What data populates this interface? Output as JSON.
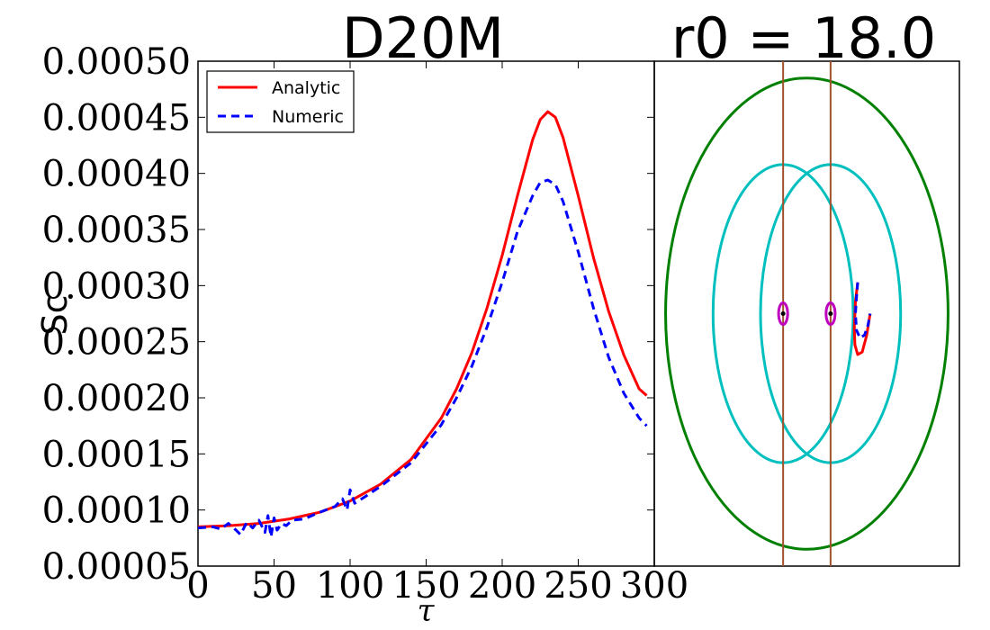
{
  "chart_data": [
    {
      "type": "line",
      "title": "D20M",
      "xlabel": "τ",
      "ylabel": "Sc",
      "xlim": [
        0,
        300
      ],
      "ylim": [
        5e-05,
        0.0005
      ],
      "xticks": [
        0,
        50,
        100,
        150,
        200,
        250,
        300
      ],
      "xtick_labels": [
        "0",
        "50",
        "100",
        "150",
        "200",
        "250",
        "300"
      ],
      "yticks": [
        5e-05,
        0.0001,
        0.00015,
        0.0002,
        0.00025,
        0.0003,
        0.00035,
        0.0004,
        0.00045,
        0.0005
      ],
      "ytick_labels": [
        "0.00005",
        "0.00010",
        "0.00015",
        "0.00020",
        "0.00025",
        "0.00030",
        "0.00035",
        "0.00040",
        "0.00045",
        "0.00050"
      ],
      "legend_position": "top-left",
      "series": [
        {
          "name": "Analytic",
          "color": "#ff0000",
          "style": "solid",
          "x": [
            0,
            20,
            40,
            60,
            80,
            100,
            120,
            140,
            160,
            170,
            180,
            190,
            200,
            210,
            220,
            225,
            230,
            235,
            240,
            250,
            260,
            270,
            280,
            290,
            295
          ],
          "y": [
            8.5e-05,
            8.6e-05,
            8.8e-05,
            9.2e-05,
            9.8e-05,
            0.000108,
            0.000123,
            0.000145,
            0.000182,
            0.000208,
            0.00024,
            0.00028,
            0.000327,
            0.00038,
            0.00043,
            0.000448,
            0.000455,
            0.00045,
            0.000432,
            0.00038,
            0.000325,
            0.000277,
            0.000238,
            0.000208,
            0.000202
          ]
        },
        {
          "name": "Numeric",
          "color": "#0000ff",
          "style": "dashed",
          "x": [
            0,
            10,
            15,
            20,
            25,
            28,
            32,
            36,
            40,
            44,
            46,
            48,
            50,
            52,
            55,
            58,
            62,
            70,
            80,
            90,
            95,
            98,
            100,
            103,
            110,
            120,
            140,
            160,
            170,
            180,
            190,
            200,
            210,
            220,
            225,
            230,
            235,
            240,
            250,
            260,
            270,
            280,
            290,
            295
          ],
          "y": [
            8.4e-05,
            8.5e-05,
            8.3e-05,
            8.8e-05,
            8.2e-05,
            7.8e-05,
            8.9e-05,
            8.4e-05,
            9.1e-05,
            8e-05,
            9.5e-05,
            7.6e-05,
            9.3e-05,
            8.2e-05,
            8.8e-05,
            8.6e-05,
            9.1e-05,
            9.2e-05,
            9.8e-05,
            0.000103,
            0.00011,
            0.0001,
            0.000118,
            0.000106,
            0.000112,
            0.000121,
            0.000142,
            0.000176,
            0.0002,
            0.000228,
            0.000263,
            0.000303,
            0.000348,
            0.00038,
            0.000392,
            0.000394,
            0.00039,
            0.000375,
            0.00033,
            0.00028,
            0.000236,
            0.000204,
            0.000182,
            0.000175
          ]
        }
      ]
    },
    {
      "type": "scatter",
      "title": "r0 = 18.0",
      "xlim": [
        -1.35,
        1.35
      ],
      "ylim": [
        -1.05,
        1.05
      ],
      "axes": "off",
      "shapes": [
        {
          "name": "outer-orbit",
          "kind": "ellipse",
          "color": "#008000",
          "cx": 0.0,
          "cy": 0.0,
          "rx": 1.25,
          "ry": 0.98
        },
        {
          "name": "left-orbit",
          "kind": "ellipse",
          "color": "#00bfbf",
          "cx": -0.21,
          "cy": 0.0,
          "rx": 0.62,
          "ry": 0.62
        },
        {
          "name": "right-orbit",
          "kind": "ellipse",
          "color": "#00bfbf",
          "cx": 0.21,
          "cy": 0.0,
          "rx": 0.62,
          "ry": 0.62
        },
        {
          "name": "left-vertical",
          "kind": "vline",
          "color": "#a0522d",
          "x": -0.21
        },
        {
          "name": "right-vertical",
          "kind": "vline",
          "color": "#a0522d",
          "x": 0.21
        },
        {
          "name": "left-body",
          "kind": "ellipse",
          "color": "#bf00bf",
          "cx": -0.21,
          "cy": 0.0,
          "rx": 0.04,
          "ry": 0.045
        },
        {
          "name": "right-body",
          "kind": "ellipse",
          "color": "#bf00bf",
          "cx": 0.21,
          "cy": 0.0,
          "rx": 0.04,
          "ry": 0.045
        }
      ],
      "series": [
        {
          "name": "Analytic",
          "color": "#ff0000",
          "style": "solid",
          "x": [
            0.45,
            0.43,
            0.42,
            0.425,
            0.45,
            0.49,
            0.53,
            0.56
          ],
          "y": [
            0.13,
            0.05,
            -0.06,
            -0.13,
            -0.17,
            -0.16,
            -0.09,
            0.0
          ]
        },
        {
          "name": "Numeric",
          "color": "#0000ff",
          "style": "dashed",
          "x": [
            0.45,
            0.44,
            0.43,
            0.44,
            0.47,
            0.51,
            0.54,
            0.56
          ],
          "y": [
            0.13,
            0.07,
            0.0,
            -0.07,
            -0.1,
            -0.09,
            -0.05,
            0.0
          ]
        }
      ]
    }
  ]
}
